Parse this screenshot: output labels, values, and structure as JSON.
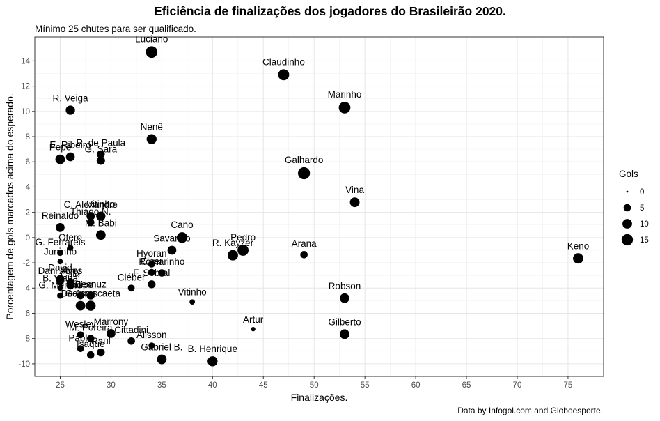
{
  "chart_data": {
    "type": "scatter",
    "title": "Eficiência de finalizações dos jogadores do Brasileirão 2020.",
    "subtitle": "Mínimo 25 chutes para ser qualificado.",
    "caption": "Data by Infogol.com and Globoesporte.",
    "xlabel": "Finalizações.",
    "ylabel": "Porcentagem de gols marcados acima do esperado.",
    "xlim": [
      22.5,
      78.5
    ],
    "ylim": [
      -11,
      15.9
    ],
    "x_ticks": [
      25,
      30,
      35,
      40,
      45,
      50,
      55,
      60,
      65,
      70,
      75
    ],
    "y_ticks": [
      -10,
      -8,
      -6,
      -4,
      -2,
      0,
      2,
      4,
      6,
      8,
      10,
      12,
      14
    ],
    "grid": true,
    "legend": {
      "title": "Gols",
      "position": "right",
      "sizes": [
        0,
        5,
        10,
        15
      ]
    },
    "points": [
      {
        "label": "Luciano",
        "x": 34,
        "y": 14.7,
        "gols": 16
      },
      {
        "label": "Claudinho",
        "x": 47,
        "y": 12.9,
        "gols": 14
      },
      {
        "label": "Marinho",
        "x": 53,
        "y": 10.3,
        "gols": 16
      },
      {
        "label": "R. Veiga",
        "x": 26,
        "y": 10.1,
        "gols": 9
      },
      {
        "label": "Nenê",
        "x": 34,
        "y": 7.8,
        "gols": 11
      },
      {
        "label": "E. Ribeiro",
        "x": 26,
        "y": 6.4,
        "gols": 8
      },
      {
        "label": "R. de Paula",
        "x": 29,
        "y": 6.6,
        "gols": 6
      },
      {
        "label": "Pepê",
        "x": 25,
        "y": 6.2,
        "gols": 10
      },
      {
        "label": "G. Sara",
        "x": 29,
        "y": 6.1,
        "gols": 7
      },
      {
        "label": "Galhardo",
        "x": 49,
        "y": 5.1,
        "gols": 17
      },
      {
        "label": "Vina",
        "x": 54,
        "y": 2.8,
        "gols": 10
      },
      {
        "label": "C. Alexandre",
        "x": 28,
        "y": 1.7,
        "gols": 7
      },
      {
        "label": "Vitinho",
        "x": 29,
        "y": 1.7,
        "gols": 9
      },
      {
        "label": "Thiago N.",
        "x": 28,
        "y": 1.2,
        "gols": 5
      },
      {
        "label": "Reinaldo",
        "x": 25,
        "y": 0.8,
        "gols": 8
      },
      {
        "label": "M. Babi",
        "x": 29,
        "y": 0.2,
        "gols": 10
      },
      {
        "label": "Cano",
        "x": 37,
        "y": 0.0,
        "gols": 13
      },
      {
        "label": "Otero",
        "x": 26,
        "y": -0.8,
        "gols": 3
      },
      {
        "label": "Savarino",
        "x": 36,
        "y": -1.0,
        "gols": 8
      },
      {
        "label": "Pedro",
        "x": 43,
        "y": -1.0,
        "gols": 14
      },
      {
        "label": "R. Kayzer",
        "x": 42,
        "y": -1.4,
        "gols": 12
      },
      {
        "label": "G. Ferrareis",
        "x": 25,
        "y": -1.2,
        "gols": 3
      },
      {
        "label": "Arana",
        "x": 49,
        "y": -1.35,
        "gols": 5
      },
      {
        "label": "Keno",
        "x": 76,
        "y": -1.65,
        "gols": 12
      },
      {
        "label": "Juninho",
        "x": 25,
        "y": -1.9,
        "gols": 2
      },
      {
        "label": "Hyoran",
        "x": 34,
        "y": -2.1,
        "gols": 4
      },
      {
        "label": "Romarinho",
        "x": 35,
        "y": -2.8,
        "gols": 5
      },
      {
        "label": "Élber",
        "x": 34,
        "y": -2.75,
        "gols": 4
      },
      {
        "label": "David",
        "x": 25,
        "y": -3.3,
        "gols": 7
      },
      {
        "label": "Dani Alves",
        "x": 25,
        "y": -3.5,
        "gols": 5
      },
      {
        "label": "Yony",
        "x": 26,
        "y": -3.5,
        "gols": 5
      },
      {
        "label": "F. Sobral",
        "x": 34,
        "y": -3.7,
        "gols": 6
      },
      {
        "label": "B. Viana",
        "x": 25,
        "y": -4.0,
        "gols": 2
      },
      {
        "label": "Caio",
        "x": 26,
        "y": -3.8,
        "gols": 6
      },
      {
        "label": "Cléber",
        "x": 32,
        "y": -4.0,
        "gols": 4
      },
      {
        "label": "G. Menino",
        "x": 25,
        "y": -4.6,
        "gols": 3
      },
      {
        "label": "Felipe",
        "x": 27,
        "y": -4.6,
        "gols": 5
      },
      {
        "label": "Besnuz",
        "x": 28,
        "y": -4.6,
        "gols": 6
      },
      {
        "label": "Vitinho",
        "x": 38,
        "y": -5.1,
        "gols": 2
      },
      {
        "label": "Gerson",
        "x": 27,
        "y": -5.4,
        "gols": 10
      },
      {
        "label": "De Arrascaeta",
        "x": 28,
        "y": -5.4,
        "gols": 11
      },
      {
        "label": "Robson",
        "x": 53,
        "y": -4.8,
        "gols": 10
      },
      {
        "label": "Artur",
        "x": 44,
        "y": -7.25,
        "gols": 1
      },
      {
        "label": "Marrony",
        "x": 30,
        "y": -7.6,
        "gols": 8
      },
      {
        "label": "Wesley",
        "x": 27,
        "y": -7.7,
        "gols": 4
      },
      {
        "label": "Cittadini",
        "x": 32,
        "y": -8.2,
        "gols": 5
      },
      {
        "label": "M. Pereira",
        "x": 28,
        "y": -8.0,
        "gols": 5
      },
      {
        "label": "Gilberto",
        "x": 53,
        "y": -7.65,
        "gols": 10
      },
      {
        "label": "Alisson",
        "x": 34,
        "y": -8.55,
        "gols": 3
      },
      {
        "label": "Pablo",
        "x": 27,
        "y": -8.8,
        "gols": 4
      },
      {
        "label": "Isaque",
        "x": 28,
        "y": -9.3,
        "gols": 5
      },
      {
        "label": "Raul",
        "x": 29,
        "y": -9.1,
        "gols": 6
      },
      {
        "label": "Gabriel B.",
        "x": 35,
        "y": -9.65,
        "gols": 10
      },
      {
        "label": "B. Henrique",
        "x": 40,
        "y": -9.8,
        "gols": 11
      },
      {
        "label": "Luciano",
        "x": 36,
        "y": -1.0,
        "gols": 0
      }
    ]
  }
}
